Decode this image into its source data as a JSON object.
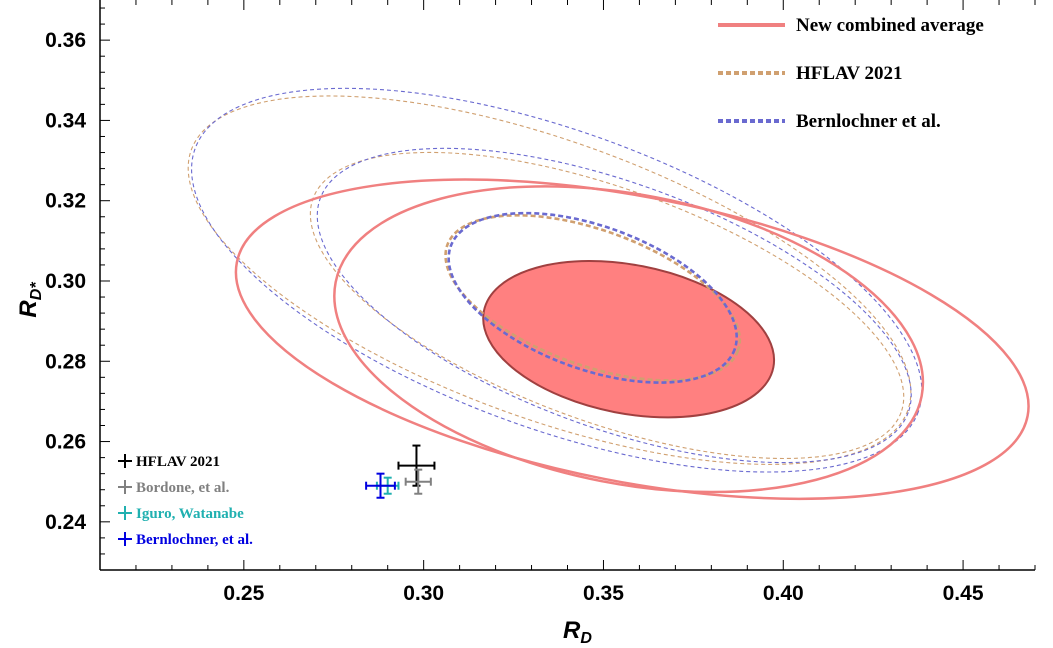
{
  "chart_data": {
    "type": "scatter",
    "xlabel": "R",
    "xlabel_sub": "D",
    "ylabel": "R",
    "ylabel_sub": "D*",
    "xlim": [
      0.21,
      0.47
    ],
    "ylim": [
      0.228,
      0.37
    ],
    "x_ticks": [
      {
        "value": 0.25,
        "label": "0.25"
      },
      {
        "value": 0.3,
        "label": "0.30"
      },
      {
        "value": 0.35,
        "label": "0.35"
      },
      {
        "value": 0.4,
        "label": "0.40"
      },
      {
        "value": 0.45,
        "label": "0.45"
      }
    ],
    "y_ticks": [
      {
        "value": 0.24,
        "label": "0.24"
      },
      {
        "value": 0.26,
        "label": "0.26"
      },
      {
        "value": 0.28,
        "label": "0.28"
      },
      {
        "value": 0.3,
        "label": "0.30"
      },
      {
        "value": 0.32,
        "label": "0.32"
      },
      {
        "value": 0.34,
        "label": "0.34"
      },
      {
        "value": 0.36,
        "label": "0.36"
      }
    ],
    "grid": false,
    "legend_position": "top-right",
    "contour_series": [
      {
        "name": "New combined average",
        "color": "#f08080",
        "style": "solid",
        "ellipses": [
          {
            "level": 1,
            "center": [
              0.357,
              0.2855
            ],
            "rx": 0.041,
            "ry": 0.0185,
            "angle_deg": 11,
            "filled": true,
            "fill": "#ff8080",
            "edge": "#a04040"
          },
          {
            "level": 2,
            "center": [
              0.357,
              0.2855
            ],
            "rx": 0.083,
            "ry": 0.036,
            "angle_deg": 11,
            "filled": false
          },
          {
            "level": 3,
            "center": [
              0.358,
              0.2855
            ],
            "rx": 0.112,
            "ry": 0.0355,
            "angle_deg": 11,
            "filled": false
          }
        ]
      },
      {
        "name": "HFLAV 2021",
        "color": "#d0a070",
        "style": "dashed",
        "ellipses": [
          {
            "level": 1,
            "center": [
              0.347,
              0.2958
            ],
            "rx": 0.043,
            "ry": 0.0168,
            "angle_deg": 20,
            "filled": false
          },
          {
            "level": 2,
            "center": [
              0.351,
              0.2939
            ],
            "rx": 0.087,
            "ry": 0.029,
            "angle_deg": 20,
            "filled": false
          },
          {
            "level": 3,
            "center": [
              0.335,
              0.3002
            ],
            "rx": 0.106,
            "ry": 0.0345,
            "angle_deg": 20,
            "filled": false
          }
        ]
      },
      {
        "name": "Bernlochner et al.",
        "color": "#6a6ad0",
        "style": "dashed",
        "ellipses": [
          {
            "level": 1,
            "center": [
              0.347,
              0.2958
            ],
            "rx": 0.042,
            "ry": 0.0178,
            "angle_deg": 20,
            "filled": false
          },
          {
            "level": 2,
            "center": [
              0.353,
              0.2939
            ],
            "rx": 0.087,
            "ry": 0.0305,
            "angle_deg": 20,
            "filled": false
          },
          {
            "level": 3,
            "center": [
              0.337,
              0.3002
            ],
            "rx": 0.107,
            "ry": 0.037,
            "angle_deg": 20,
            "filled": false
          }
        ]
      }
    ],
    "points": [
      {
        "name": "HFLAV 2021",
        "x": 0.298,
        "y": 0.254,
        "xerr": 0.005,
        "yerr": 0.005,
        "color": "#000000"
      },
      {
        "name": "Bordone, et al.",
        "x": 0.2985,
        "y": 0.25,
        "xerr": 0.0035,
        "yerr": 0.003,
        "color": "#808080"
      },
      {
        "name": "Iguro, Watanabe",
        "x": 0.29,
        "y": 0.249,
        "xerr": 0.003,
        "yerr": 0.002,
        "color": "#20b0b0"
      },
      {
        "name": "Bernlochner, et al.",
        "x": 0.288,
        "y": 0.249,
        "xerr": 0.004,
        "yerr": 0.003,
        "color": "#0000e0"
      }
    ]
  }
}
